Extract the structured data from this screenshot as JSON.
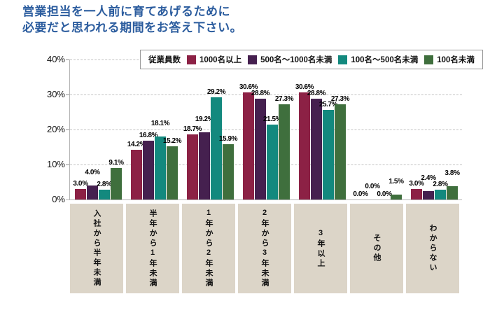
{
  "title": {
    "line1": "営業担当を一人前に育てあげるために",
    "line2": "必要だと思われる期間をお答え下さい。",
    "color": "#2b5c9e"
  },
  "legend": {
    "label": "従業員数",
    "position": "top"
  },
  "chart_data": {
    "type": "bar",
    "title": "営業担当を一人前に育てあげるために必要だと思われる期間をお答え下さい。",
    "categories": [
      "入社から半年未満",
      "半年から1年未満",
      "1年から2年未満",
      "2年から3年未満",
      "3年以上",
      "その他",
      "わからない"
    ],
    "series": [
      {
        "name": "1000名以上",
        "color": "#8c2145",
        "values": [
          3.0,
          14.2,
          18.7,
          30.6,
          30.6,
          0.0,
          3.0
        ]
      },
      {
        "name": "500名～1000名未満",
        "color": "#45204f",
        "values": [
          4.0,
          16.8,
          19.2,
          28.8,
          28.8,
          0.0,
          2.4
        ]
      },
      {
        "name": "100名～500名未満",
        "color": "#13897e",
        "values": [
          2.8,
          18.1,
          29.2,
          21.5,
          25.7,
          0.0,
          2.8
        ]
      },
      {
        "name": "100名未満",
        "color": "#3f6f3d",
        "values": [
          9.1,
          15.2,
          15.9,
          27.3,
          27.3,
          1.5,
          3.8
        ]
      }
    ],
    "value_label_format": "0.0%",
    "xlabel": "",
    "ylabel": "",
    "ylim": [
      0,
      40
    ],
    "ytick_labels": [
      "0%",
      "10%",
      "20%",
      "30%",
      "40%"
    ],
    "grid": "horizontal-dashed",
    "legend_position": "top",
    "category_box_color": "#dcd5c8"
  }
}
